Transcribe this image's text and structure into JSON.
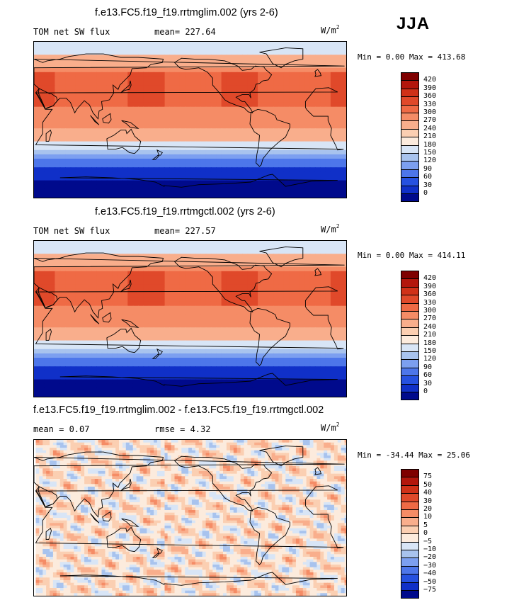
{
  "season": "JJA",
  "units": {
    "base": "W/m",
    "exp": "2"
  },
  "panels": [
    {
      "title": "f.e13.FC5.f19_f19.rrtmglim.002 (yrs 2-6)",
      "left_label": "TOM net SW flux",
      "center_label": "mean= 227.64",
      "minmax": "Min =   0.00 Max = 413.68"
    },
    {
      "title": "f.e13.FC5.f19_f19.rrtmgctl.002 (yrs 2-6)",
      "left_label": "TOM net SW flux",
      "center_label": "mean= 227.57",
      "minmax": "Min =   0.00 Max = 414.11"
    },
    {
      "title": "f.e13.FC5.f19_f19.rrtmglim.002 - f.e13.FC5.f19_f19.rrtmgctl.002",
      "left_label": "mean =   0.07",
      "center_label": "rmse =   4.32",
      "minmax": "Min = -34.44 Max =  25.06"
    }
  ],
  "chart_data": [
    {
      "type": "heatmap",
      "title": "f.e13.FC5.f19_f19.rrtmglim.002 (yrs 2-6)",
      "variable": "TOM net SW flux",
      "units": "W/m^2",
      "mean": 227.64,
      "min": 0.0,
      "max": 413.68,
      "levels": [
        420,
        390,
        360,
        330,
        300,
        270,
        240,
        210,
        180,
        150,
        120,
        90,
        60,
        30,
        0
      ],
      "colors": [
        "#7f0000",
        "#b3160c",
        "#d03118",
        "#e0492a",
        "#ef6a45",
        "#f58c66",
        "#f9ae8c",
        "#fbcfb2",
        "#fcebdd",
        "#d8e5f6",
        "#a8c3ee",
        "#7c9ff0",
        "#4d76ea",
        "#2651e0",
        "#1030c8",
        "#000a8c"
      ]
    },
    {
      "type": "heatmap",
      "title": "f.e13.FC5.f19_f19.rrtmgctl.002 (yrs 2-6)",
      "variable": "TOM net SW flux",
      "units": "W/m^2",
      "mean": 227.57,
      "min": 0.0,
      "max": 414.11,
      "levels": [
        420,
        390,
        360,
        330,
        300,
        270,
        240,
        210,
        180,
        150,
        120,
        90,
        60,
        30,
        0
      ],
      "colors": [
        "#7f0000",
        "#b3160c",
        "#d03118",
        "#e0492a",
        "#ef6a45",
        "#f58c66",
        "#f9ae8c",
        "#fbcfb2",
        "#fcebdd",
        "#d8e5f6",
        "#a8c3ee",
        "#7c9ff0",
        "#4d76ea",
        "#2651e0",
        "#1030c8",
        "#000a8c"
      ]
    },
    {
      "type": "heatmap",
      "title": "f.e13.FC5.f19_f19.rrtmglim.002 - f.e13.FC5.f19_f19.rrtmgctl.002",
      "units": "W/m^2",
      "mean": 0.07,
      "rmse": 4.32,
      "min": -34.44,
      "max": 25.06,
      "levels": [
        75,
        50,
        40,
        30,
        20,
        10,
        5,
        0,
        -5,
        -10,
        -20,
        -30,
        -40,
        -50,
        -75
      ],
      "colors": [
        "#7f0000",
        "#b3160c",
        "#d03118",
        "#e0492a",
        "#ef6a45",
        "#f58c66",
        "#f9ae8c",
        "#fbcfb2",
        "#fcebdd",
        "#d8e5f6",
        "#a8c3ee",
        "#7c9ff0",
        "#4d76ea",
        "#2651e0",
        "#1030c8",
        "#000a8c"
      ]
    }
  ]
}
